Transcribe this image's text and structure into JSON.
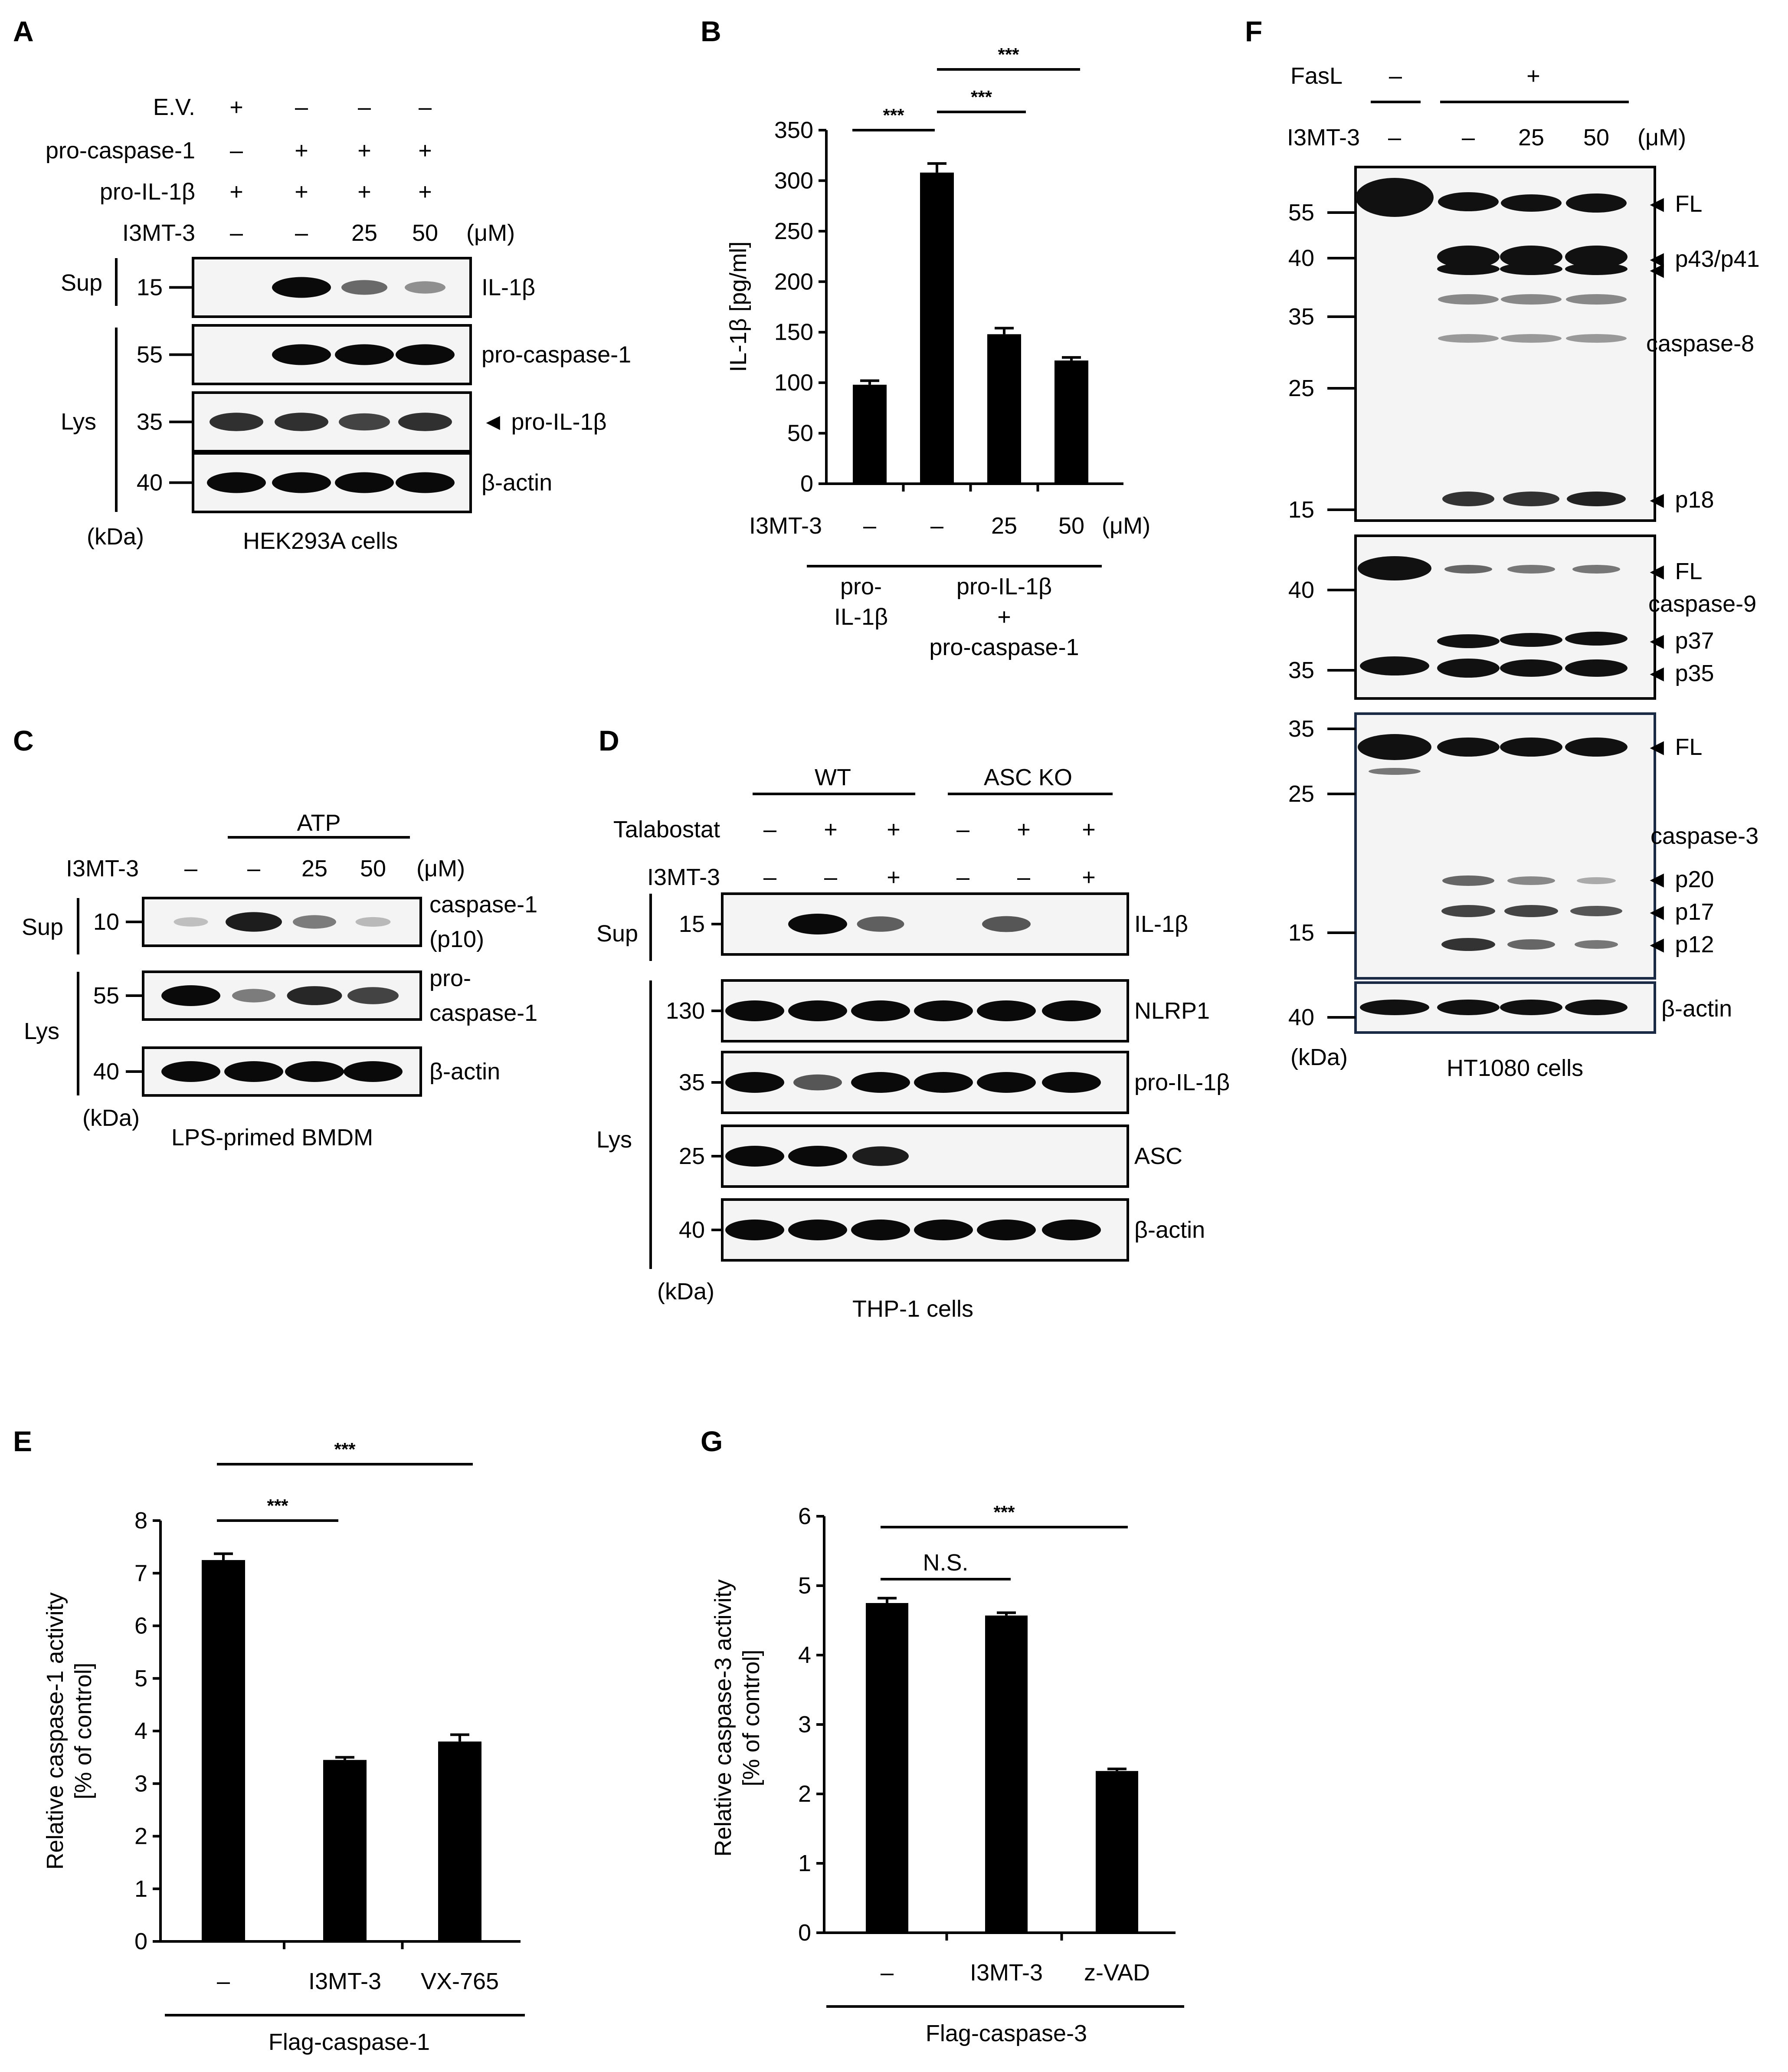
{
  "panels": {
    "A": {
      "letter": "A",
      "rows": [
        {
          "label": "E.V.",
          "values": [
            "+",
            "–",
            "–",
            "–"
          ]
        },
        {
          "label": "pro-caspase-1",
          "values": [
            "–",
            "+",
            "+",
            "+"
          ]
        },
        {
          "label": "pro-IL-1β",
          "values": [
            "+",
            "+",
            "+",
            "+"
          ]
        },
        {
          "label": "I3MT-3",
          "values": [
            "–",
            "–",
            "25",
            "50"
          ],
          "unit": "(μM)"
        }
      ],
      "fractions": [
        "Sup",
        "Lys"
      ],
      "blots": [
        {
          "marker": "15",
          "name": "IL-1β",
          "bands": [
            0,
            1,
            0.5,
            0.3
          ]
        },
        {
          "marker": "55",
          "name": "pro-caspase-1",
          "bands": [
            0,
            1,
            1,
            1
          ]
        },
        {
          "marker": "35",
          "name": "◄ pro-IL-1β",
          "bands": [
            0.8,
            0.8,
            0.7,
            0.8
          ]
        },
        {
          "marker": "40",
          "name": "β-actin",
          "bands": [
            1,
            1,
            1,
            1
          ]
        }
      ],
      "kda": "(kDa)",
      "caption": "HEK293A cells"
    },
    "C": {
      "letter": "C",
      "group": "ATP",
      "rows": [
        {
          "label": "I3MT-3",
          "values": [
            "–",
            "–",
            "25",
            "50"
          ],
          "unit": "(μM)"
        }
      ],
      "fractions": [
        "Sup",
        "Lys"
      ],
      "blots": [
        {
          "marker": "10",
          "name": [
            "caspase-1",
            "(p10)"
          ],
          "bands": [
            0.05,
            0.9,
            0.4,
            0.08
          ]
        },
        {
          "marker": "55",
          "name": [
            "pro-",
            "caspase-1"
          ],
          "bands": [
            1,
            0.4,
            0.85,
            0.7
          ]
        },
        {
          "marker": "40",
          "name": [
            "β-actin"
          ],
          "bands": [
            1,
            1,
            1,
            1
          ]
        }
      ],
      "kda": "(kDa)",
      "caption": "LPS-primed BMDM"
    },
    "D": {
      "letter": "D",
      "groups": [
        "WT",
        "ASC KO"
      ],
      "rows": [
        {
          "label": "Talabostat",
          "values": [
            "–",
            "+",
            "+",
            "–",
            "+",
            "+"
          ]
        },
        {
          "label": "I3MT-3",
          "values": [
            "–",
            "–",
            "+",
            "–",
            "–",
            "+"
          ]
        }
      ],
      "fractions": [
        "Sup",
        "Lys"
      ],
      "blots": [
        {
          "marker": "15",
          "name": "IL-1β",
          "bands": [
            0,
            1,
            0.55,
            0,
            0.6,
            0
          ]
        },
        {
          "marker": "130",
          "name": "NLRP1",
          "bands": [
            1,
            1,
            1,
            1,
            1,
            1
          ]
        },
        {
          "marker": "35",
          "name": "pro-IL-1β",
          "bands": [
            1,
            0.6,
            1,
            1,
            1,
            1
          ]
        },
        {
          "marker": "25",
          "name": "ASC",
          "bands": [
            1,
            1,
            0.9,
            0,
            0,
            0
          ]
        },
        {
          "marker": "40",
          "name": "β-actin",
          "bands": [
            1,
            1,
            1,
            1,
            1,
            1
          ]
        }
      ],
      "kda": "(kDa)",
      "caption": "THP-1 cells"
    },
    "F": {
      "letter": "F",
      "rows": [
        {
          "label": "FasL",
          "values": [
            "–",
            "+"
          ]
        },
        {
          "label": "I3MT-3",
          "values": [
            "–",
            "–",
            "25",
            "50"
          ],
          "unit": "(μM)"
        }
      ],
      "blot1_markers": [
        "55",
        "40",
        "35",
        "25",
        "15"
      ],
      "blot1_labels": [
        "◄ FL",
        "◄ p43/p41",
        "◄",
        "caspase-8",
        "◄ p18"
      ],
      "blot2_markers": [
        "40",
        "35"
      ],
      "blot2_labels": [
        "◄ FL",
        "caspase-9",
        "◄ p37",
        "◄ p35"
      ],
      "blot3_markers": [
        "35",
        "25",
        "15"
      ],
      "blot3_labels": [
        "◄ FL",
        "caspase-3",
        "◄ p20",
        "◄ p17",
        "◄ p12"
      ],
      "blot4_markers": [
        "40"
      ],
      "blot4_labels": [
        "β-actin"
      ],
      "kda": "(kDa)",
      "caption": "HT1080 cells"
    }
  },
  "chart_data": [
    {
      "panel": "B",
      "type": "bar",
      "ylabel": "IL-1β [pg/ml]",
      "ylim": [
        0,
        350
      ],
      "yticks": [
        0,
        50,
        100,
        150,
        200,
        250,
        300,
        350
      ],
      "xrow_label": "I3MT-3",
      "xrow_unit": "(μM)",
      "categories": [
        "–",
        "–",
        "25",
        "50"
      ],
      "values": [
        98,
        308,
        148,
        122
      ],
      "errors": [
        4,
        9,
        6,
        3
      ],
      "groups": [
        {
          "label": [
            "pro-",
            "IL-1β"
          ],
          "span": [
            0,
            0
          ]
        },
        {
          "label": [
            "pro-IL-1β",
            "+",
            "pro-caspase-1"
          ],
          "span": [
            1,
            3
          ]
        }
      ],
      "significance": [
        {
          "from": 0,
          "to": 1,
          "label": "***"
        },
        {
          "from": 1,
          "to": 2,
          "label": "***"
        },
        {
          "from": 1,
          "to": 3,
          "label": "***"
        }
      ]
    },
    {
      "panel": "E",
      "type": "bar",
      "ylabel": [
        "Relative caspase-1 activity",
        "[% of control]"
      ],
      "ylim": [
        0,
        8
      ],
      "yticks": [
        0,
        1,
        2,
        3,
        4,
        5,
        6,
        7,
        8
      ],
      "categories": [
        "–",
        "I3MT-3",
        "VX-765"
      ],
      "values": [
        7.25,
        3.45,
        3.8
      ],
      "errors": [
        0.12,
        0.05,
        0.13
      ],
      "group_label": "Flag-caspase-1",
      "significance": [
        {
          "from": 0,
          "to": 1,
          "label": "***"
        },
        {
          "from": 0,
          "to": 2,
          "label": "***"
        }
      ]
    },
    {
      "panel": "G",
      "type": "bar",
      "ylabel": [
        "Relative caspase-3 activity",
        "[% of control]"
      ],
      "ylim": [
        0,
        6
      ],
      "yticks": [
        0,
        1,
        2,
        3,
        4,
        5,
        6
      ],
      "categories": [
        "–",
        "I3MT-3",
        "z-VAD"
      ],
      "values": [
        4.75,
        4.57,
        2.33
      ],
      "errors": [
        0.07,
        0.04,
        0.03
      ],
      "group_label": "Flag-caspase-3",
      "significance": [
        {
          "from": 0,
          "to": 1,
          "label": "N.S."
        },
        {
          "from": 0,
          "to": 2,
          "label": "***"
        }
      ]
    }
  ]
}
